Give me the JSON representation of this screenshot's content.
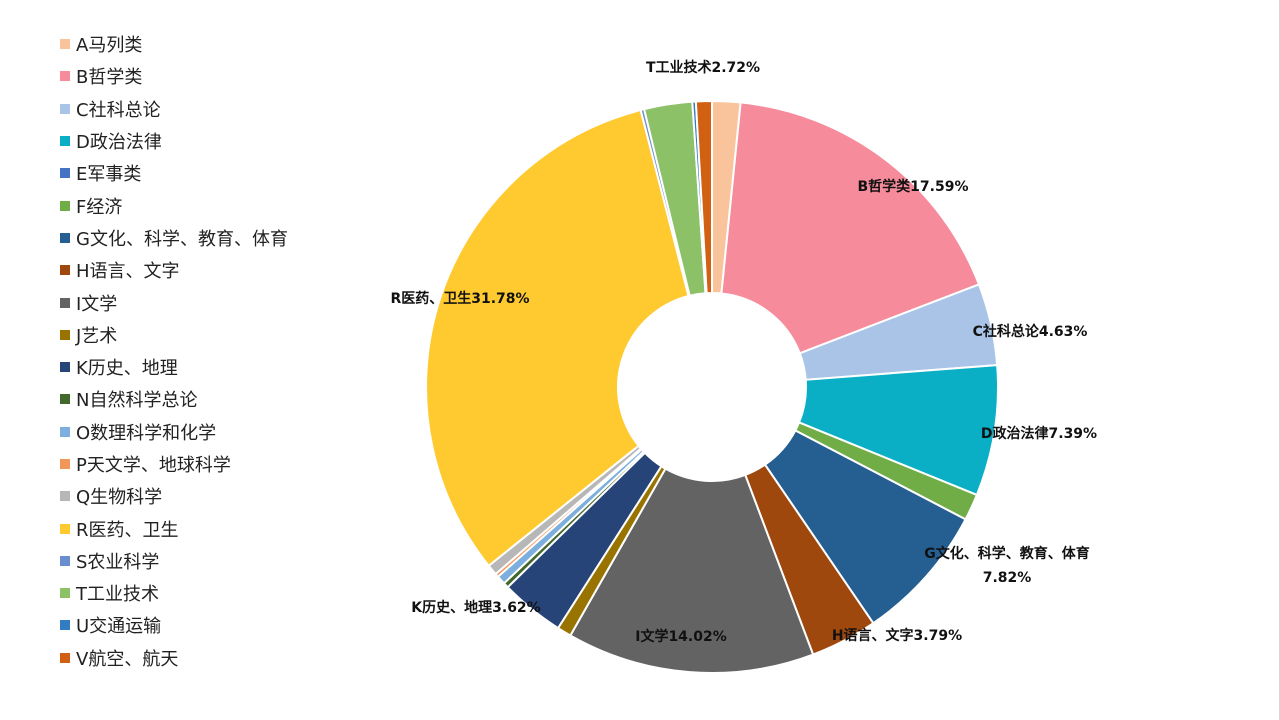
{
  "chart_data": {
    "type": "pie",
    "donut": true,
    "legend_position": "left",
    "categories": [
      "A马列类",
      "B哲学类",
      "C社科总论",
      "D政治法律",
      "E军事类",
      "F经济",
      "G文化、科学、教育、体育",
      "H语言、文字",
      "I文学",
      "J艺术",
      "K历史、地理",
      "N自然科学总论",
      "O数理科学和化学",
      "P天文学、地球科学",
      "Q生物科学",
      "R医药、卫生",
      "S农业科学",
      "T工业技术",
      "U交通运输",
      "V航空、航天"
    ],
    "values": [
      1.6,
      17.59,
      4.63,
      7.39,
      0.0,
      1.5,
      7.82,
      3.79,
      14.02,
      0.8,
      3.62,
      0.3,
      0.5,
      0.2,
      0.6,
      31.78,
      0.2,
      2.72,
      0.2,
      0.9
    ],
    "colors": [
      "#f9c49b",
      "#f68b9b",
      "#a9c4e7",
      "#0aafc6",
      "#4472c4",
      "#70ad47",
      "#255e91",
      "#9e480e",
      "#636363",
      "#997300",
      "#264478",
      "#43682b",
      "#7cafdd",
      "#f1975a",
      "#b7b7b7",
      "#ffca30",
      "#698ed0",
      "#8cc168",
      "#327dc2",
      "#d26012"
    ],
    "labels": [
      {
        "category": "T工业技术",
        "lines": [
          "T工业技术2.72%"
        ]
      },
      {
        "category": "B哲学类",
        "lines": [
          "B哲学类17.59%"
        ]
      },
      {
        "category": "C社科总论",
        "lines": [
          "C社科总论4.63%"
        ]
      },
      {
        "category": "D政治法律",
        "lines": [
          "D政治法律7.39%"
        ]
      },
      {
        "category": "G文化、科学、教育、体育",
        "lines": [
          "G文化、科学、教育、体育",
          "7.82%"
        ]
      },
      {
        "category": "H语言、文字",
        "lines": [
          "H语言、文字3.79%"
        ]
      },
      {
        "category": "I文学",
        "lines": [
          "I文学14.02%"
        ]
      },
      {
        "category": "K历史、地理",
        "lines": [
          "K历史、地理3.62%"
        ]
      },
      {
        "category": "R医药、卫生",
        "lines": [
          "R医药、卫生31.78%"
        ]
      }
    ]
  }
}
